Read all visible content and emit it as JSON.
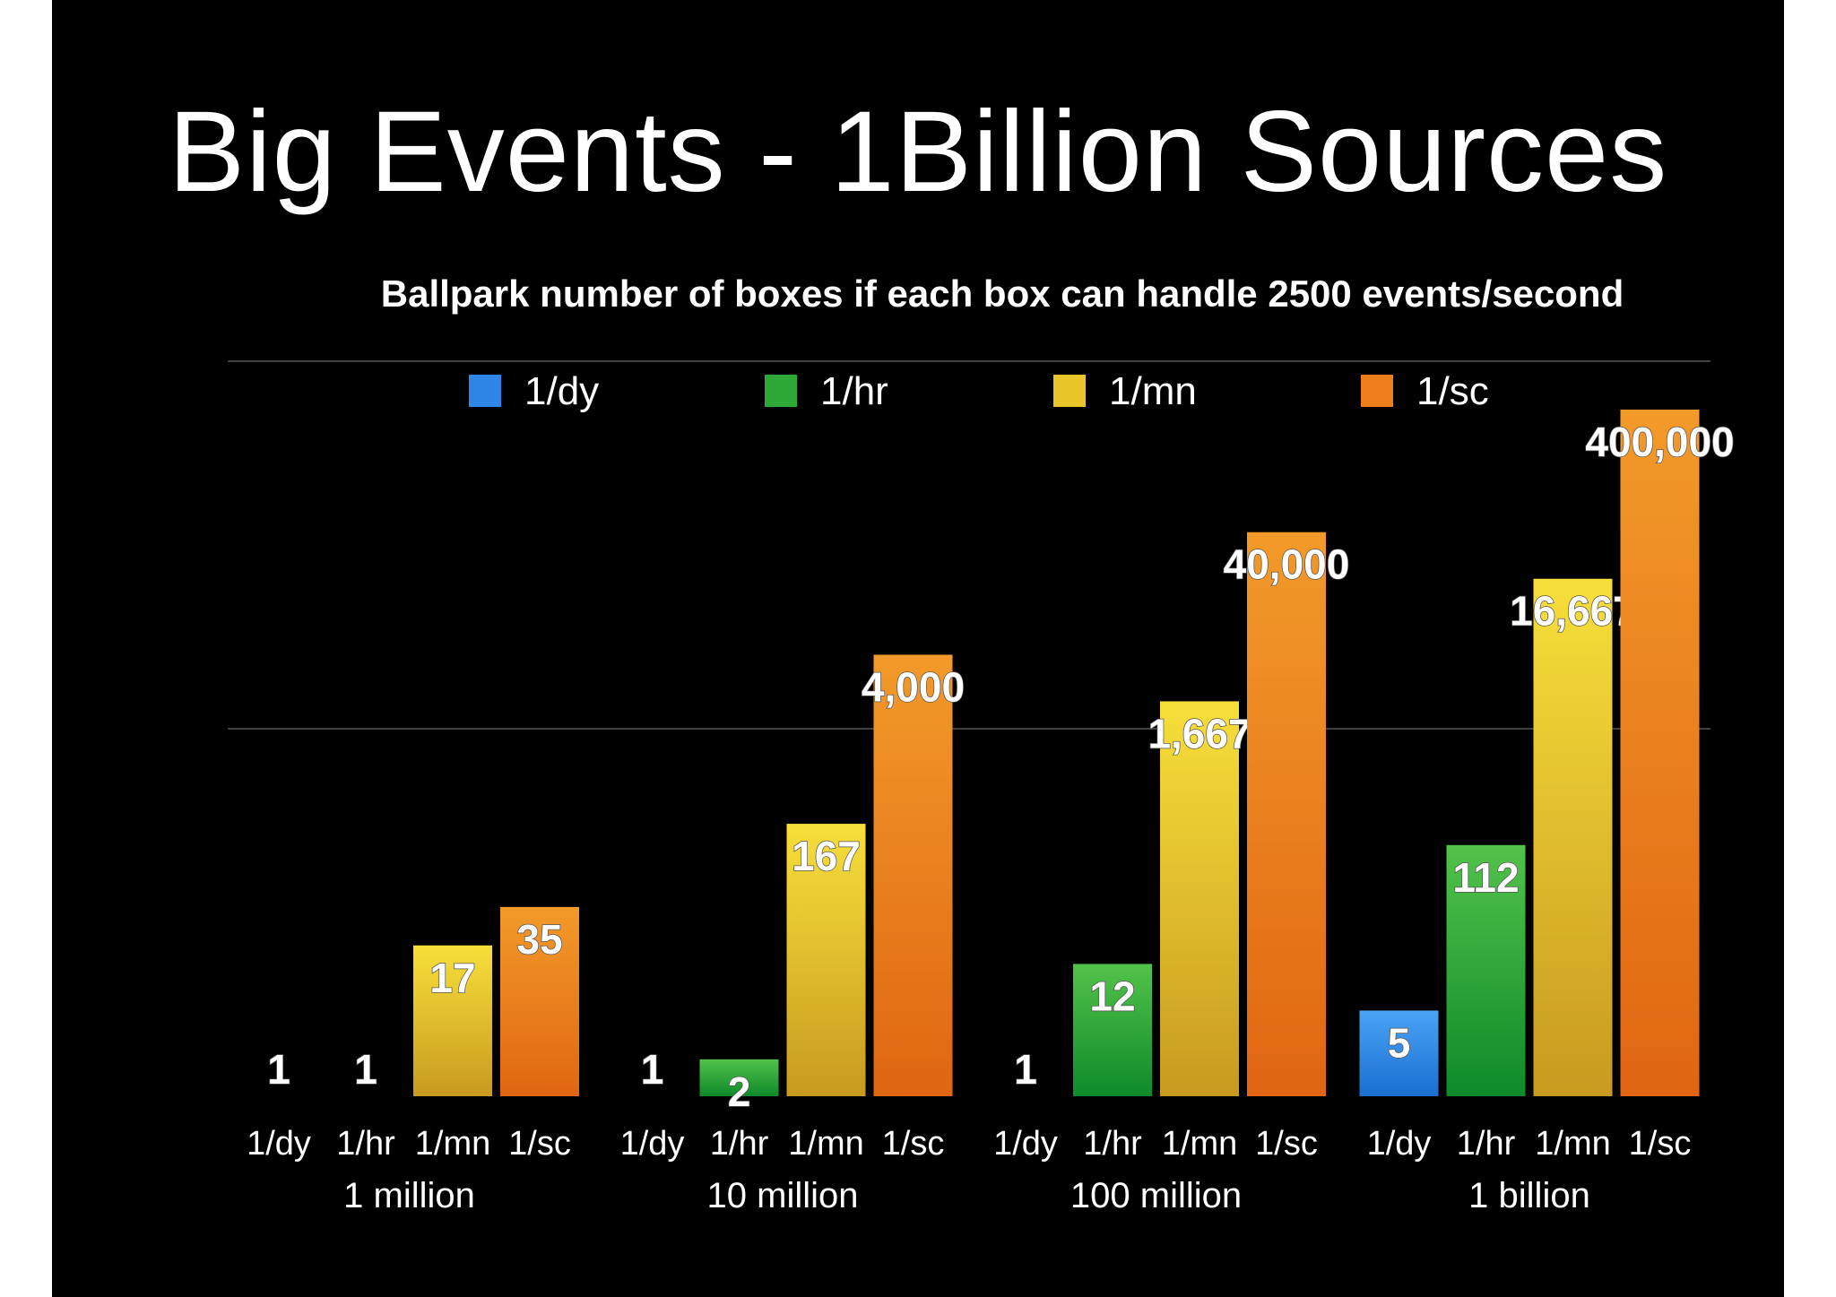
{
  "slide": {
    "title": "Big Events - 1Billion Sources"
  },
  "chart_data": {
    "type": "bar",
    "title": "Ballpark number of boxes if each box can handle 2500 events/second",
    "scale": "log",
    "grid": true,
    "legend_position": "top",
    "groups": [
      "1 million",
      "10 million",
      "100 million",
      "1 billion"
    ],
    "series_labels": [
      "1/dy",
      "1/hr",
      "1/mn",
      "1/sc"
    ],
    "series": [
      {
        "name": "1/dy",
        "color": "#2f86e6",
        "values": [
          1,
          1,
          1,
          5
        ],
        "labels": [
          "1",
          "1",
          "1",
          "5"
        ]
      },
      {
        "name": "1/hr",
        "color": "#2ea836",
        "values": [
          1,
          2,
          12,
          112
        ],
        "labels": [
          "1",
          "2",
          "12",
          "112"
        ]
      },
      {
        "name": "1/mn",
        "color": "#e8c62a",
        "values": [
          17,
          167,
          1667,
          16667
        ],
        "labels": [
          "17",
          "167",
          "1,667",
          "16,667"
        ]
      },
      {
        "name": "1/sc",
        "color": "#ee7d1c",
        "values": [
          35,
          4000,
          40000,
          400000
        ],
        "labels": [
          "35",
          "4,000",
          "40,000",
          "400,000"
        ]
      }
    ],
    "ylim": [
      1,
      400000
    ]
  }
}
